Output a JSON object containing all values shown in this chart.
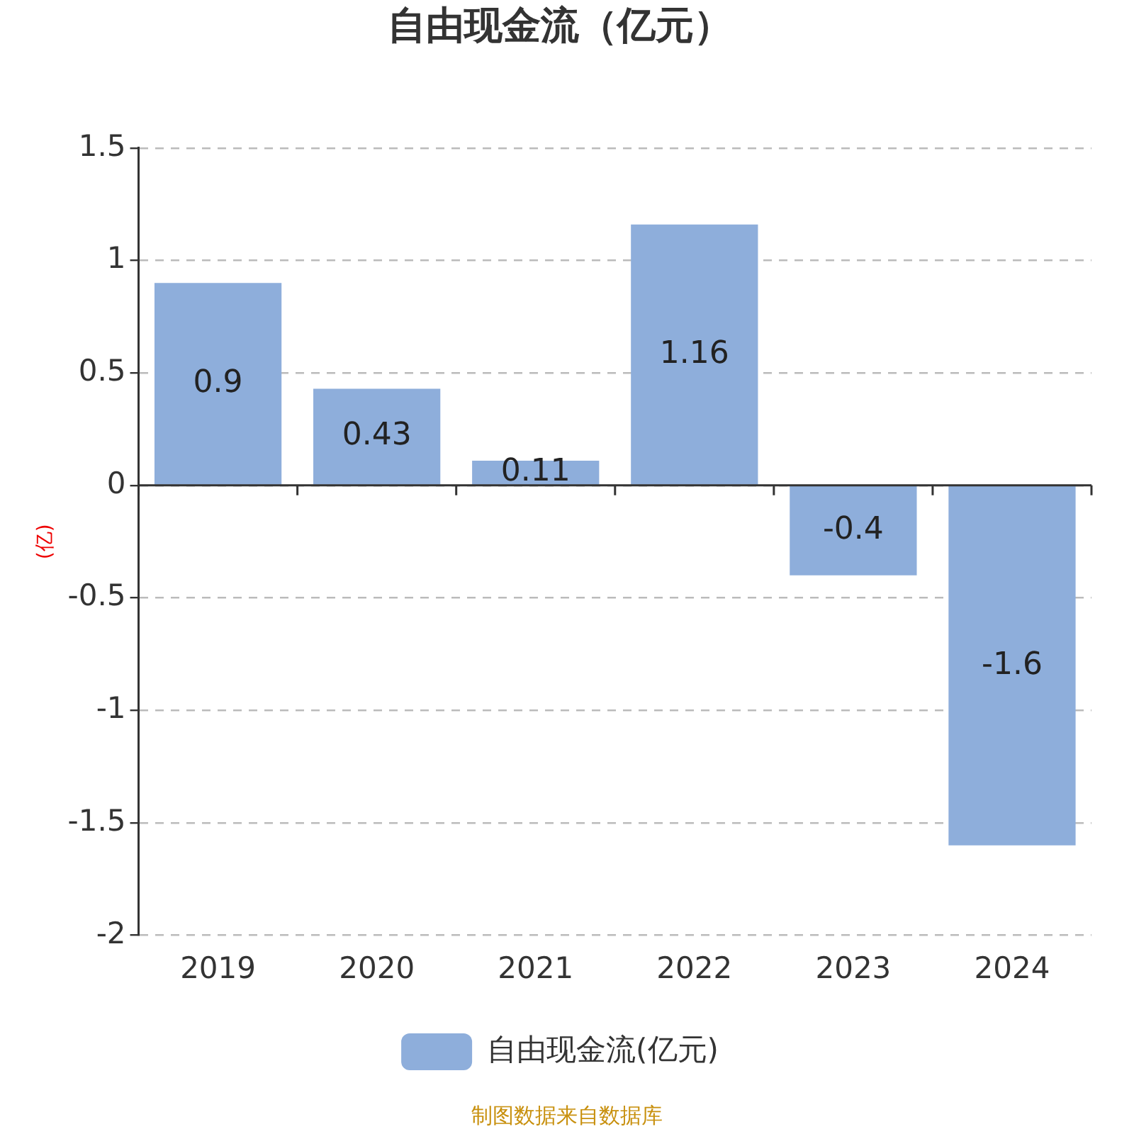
{
  "chart_data": {
    "type": "bar",
    "title": "自由现金流（亿元）",
    "ylabel": "(亿)",
    "categories": [
      "2019",
      "2020",
      "2021",
      "2022",
      "2023",
      "2024"
    ],
    "series": [
      {
        "name": "自由现金流(亿元)",
        "color": "#8eaedb",
        "values": [
          0.9,
          0.43,
          0.11,
          1.16,
          -0.4,
          -1.6
        ]
      }
    ],
    "ylim": [
      -2,
      1.5
    ],
    "yticks": [
      -2,
      -1.5,
      -1,
      -0.5,
      0,
      0.5,
      1,
      1.5
    ],
    "grid": "y",
    "legend": "bottom",
    "data_labels": true,
    "annotations": [
      "制图数据来自数据库"
    ]
  }
}
